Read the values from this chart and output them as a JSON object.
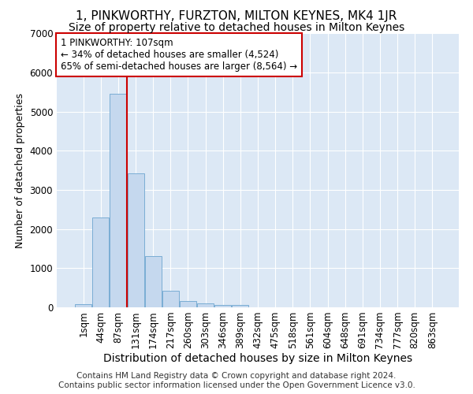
{
  "title": "1, PINKWORTHY, FURZTON, MILTON KEYNES, MK4 1JR",
  "subtitle": "Size of property relative to detached houses in Milton Keynes",
  "xlabel": "Distribution of detached houses by size in Milton Keynes",
  "ylabel": "Number of detached properties",
  "categories": [
    "1sqm",
    "44sqm",
    "87sqm",
    "131sqm",
    "174sqm",
    "217sqm",
    "260sqm",
    "303sqm",
    "346sqm",
    "389sqm",
    "432sqm",
    "475sqm",
    "518sqm",
    "561sqm",
    "604sqm",
    "648sqm",
    "691sqm",
    "734sqm",
    "777sqm",
    "820sqm",
    "863sqm"
  ],
  "values": [
    80,
    2300,
    5450,
    3430,
    1310,
    430,
    165,
    95,
    65,
    55,
    0,
    0,
    0,
    0,
    0,
    0,
    0,
    0,
    0,
    0,
    0
  ],
  "bar_color": "#c5d8ee",
  "bar_edge_color": "#7aadd4",
  "vline_color": "#cc0000",
  "vline_index": 2.5,
  "annotation_text": "1 PINKWORTHY: 107sqm\n← 34% of detached houses are smaller (4,524)\n65% of semi-detached houses are larger (8,564) →",
  "annotation_box_facecolor": "#ffffff",
  "annotation_box_edgecolor": "#cc0000",
  "ylim": [
    0,
    7000
  ],
  "yticks": [
    0,
    1000,
    2000,
    3000,
    4000,
    5000,
    6000,
    7000
  ],
  "bg_color": "#dce8f5",
  "grid_color": "#ffffff",
  "footer": "Contains HM Land Registry data © Crown copyright and database right 2024.\nContains public sector information licensed under the Open Government Licence v3.0.",
  "title_fontsize": 11,
  "subtitle_fontsize": 10,
  "xlabel_fontsize": 10,
  "ylabel_fontsize": 9,
  "tick_fontsize": 8.5,
  "annotation_fontsize": 8.5,
  "footer_fontsize": 7.5
}
